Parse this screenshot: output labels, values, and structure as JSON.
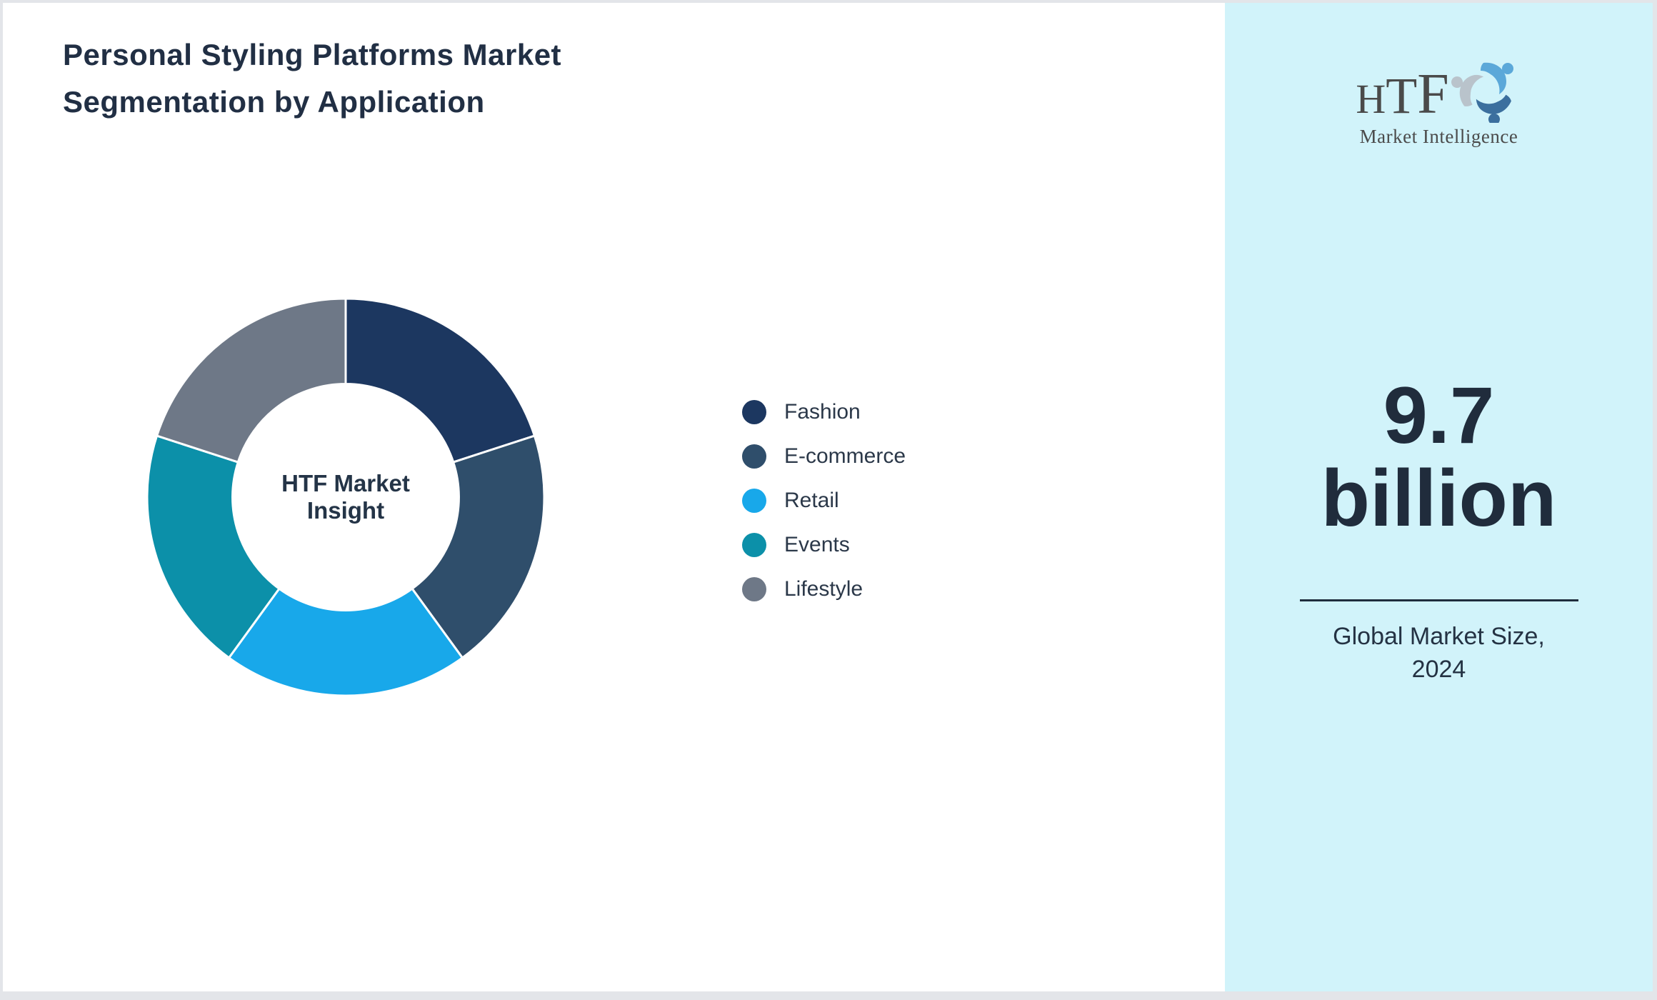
{
  "page": {
    "background": "#e3e5e9"
  },
  "title": {
    "line1": "Personal Styling Platforms Market",
    "line2": "Segmentation by Application"
  },
  "chart_data": {
    "type": "pie",
    "subtype": "donut",
    "title": "Personal Styling Platforms Market Segmentation by Application",
    "categories": [
      "Fashion",
      "E-commerce",
      "Retail",
      "Events",
      "Lifestyle"
    ],
    "values": [
      20,
      20,
      20,
      20,
      20
    ],
    "unit": "percent-share",
    "colors": [
      "#1c3760",
      "#2f4e6b",
      "#18a8ea",
      "#0c90a9",
      "#6e7887"
    ],
    "start_angle_deg": 0,
    "direction": "clockwise",
    "inner_radius_ratio": 0.57,
    "separator_color": "#ffffff",
    "legend_position": "right",
    "center_label": {
      "line1": "HTF Market",
      "line2": "Insight"
    }
  },
  "sidebar": {
    "background": "#d1f3fa",
    "logo": {
      "text": "HTF",
      "subtext": "Market Intelligence",
      "swirl_colors": [
        "#5ba8d9",
        "#3b6f9e",
        "#b9c3cb"
      ]
    },
    "market_size": {
      "value_line1": "9.7",
      "value_line2": "billion",
      "caption_line1": "Global Market Size,",
      "caption_line2": "2024"
    }
  }
}
